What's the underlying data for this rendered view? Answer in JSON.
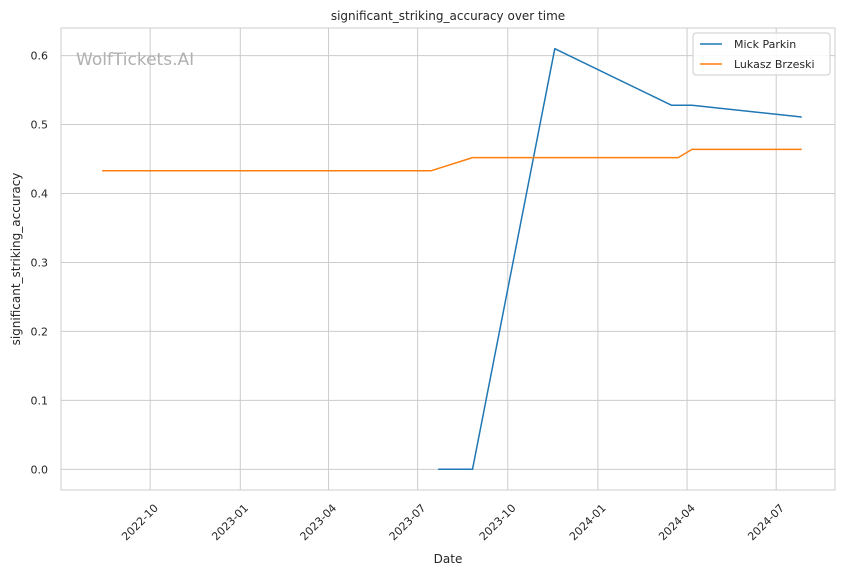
{
  "chart_data": {
    "type": "line",
    "title": "significant_striking_accuracy over time",
    "xlabel": "Date",
    "ylabel": "significant_striking_accuracy",
    "watermark": "WolfTickets.AI",
    "xlim": [
      "2022-07-02",
      "2024-08-30"
    ],
    "ylim": [
      -0.03,
      0.64
    ],
    "x_ticks": [
      "2022-10-01",
      "2023-01-01",
      "2023-04-01",
      "2023-07-01",
      "2023-10-01",
      "2024-01-01",
      "2024-04-01",
      "2024-07-01"
    ],
    "x_tick_labels": [
      "2022-10",
      "2023-01",
      "2023-04",
      "2023-07",
      "2023-10",
      "2024-01",
      "2024-04",
      "2024-07"
    ],
    "y_ticks": [
      0.0,
      0.1,
      0.2,
      0.3,
      0.4,
      0.5,
      0.6
    ],
    "y_tick_labels": [
      "0.0",
      "0.1",
      "0.2",
      "0.3",
      "0.4",
      "0.5",
      "0.6"
    ],
    "grid": true,
    "legend_position": "top-right",
    "series": [
      {
        "name": "Mick Parkin",
        "color": "#1f77b4",
        "points": [
          {
            "x": "2023-07-22",
            "y": 0.0
          },
          {
            "x": "2023-08-26",
            "y": 0.0
          },
          {
            "x": "2023-11-18",
            "y": 0.61
          },
          {
            "x": "2024-03-16",
            "y": 0.528
          },
          {
            "x": "2024-04-06",
            "y": 0.528
          },
          {
            "x": "2024-07-27",
            "y": 0.511
          }
        ]
      },
      {
        "name": "Lukasz Brzeski",
        "color": "#ff7f0e",
        "points": [
          {
            "x": "2022-08-13",
            "y": 0.433
          },
          {
            "x": "2023-07-15",
            "y": 0.433
          },
          {
            "x": "2023-08-26",
            "y": 0.452
          },
          {
            "x": "2024-03-23",
            "y": 0.452
          },
          {
            "x": "2024-04-06",
            "y": 0.464
          },
          {
            "x": "2024-07-27",
            "y": 0.464
          }
        ]
      }
    ]
  }
}
